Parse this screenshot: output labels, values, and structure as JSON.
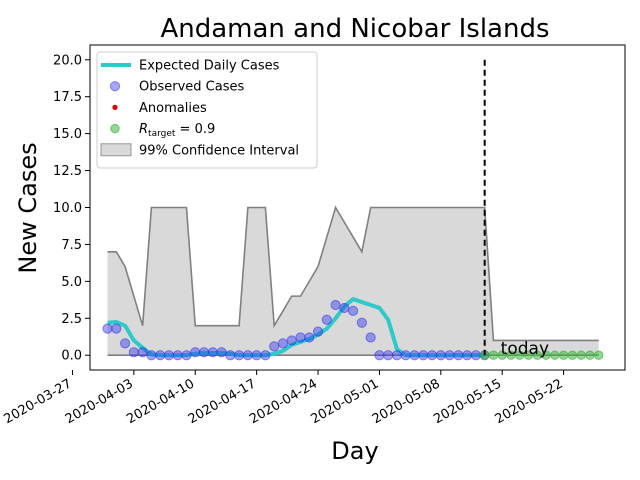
{
  "chart_data": {
    "type": "line",
    "title": "Andaman and Nicobar Islands",
    "xlabel": "Day",
    "ylabel": "New Cases",
    "x_start": "2020-03-31",
    "x_ticks": [
      "2020-03-27",
      "2020-04-03",
      "2020-04-10",
      "2020-04-17",
      "2020-04-24",
      "2020-05-01",
      "2020-05-08",
      "2020-05-15",
      "2020-05-22"
    ],
    "y_ticks": [
      "0.0",
      "2.5",
      "5.0",
      "7.5",
      "10.0",
      "12.5",
      "15.0",
      "17.5",
      "20.0"
    ],
    "xlim": [
      "2020-03-29",
      "2020-05-29"
    ],
    "ylim": [
      -1.0,
      21.0
    ],
    "legend_position": "upper left",
    "today_date": "2020-05-13",
    "today_label": "today",
    "legend": {
      "expected": "Expected Daily Cases",
      "observed": "Observed Cases",
      "anomalies": "Anomalies",
      "target": "R_target = 0.9",
      "ci": "99% Confidence Interval"
    },
    "colors": {
      "expected": "#2ec9c9",
      "observed": "#2d2df0",
      "anomalies": "#e00000",
      "target": "#3cb43c",
      "ci_fill": "#d9d9d9",
      "ci_edge": "#808080",
      "today_line": "#000000"
    },
    "series": [
      {
        "name": "Expected Daily Cases",
        "dates": [
          "2020-03-31",
          "2020-04-01",
          "2020-04-02",
          "2020-04-03",
          "2020-04-04",
          "2020-04-05",
          "2020-04-06",
          "2020-04-07",
          "2020-04-08",
          "2020-04-09",
          "2020-04-10",
          "2020-04-11",
          "2020-04-12",
          "2020-04-13",
          "2020-04-14",
          "2020-04-15",
          "2020-04-16",
          "2020-04-17",
          "2020-04-18",
          "2020-04-19",
          "2020-04-20",
          "2020-04-21",
          "2020-04-22",
          "2020-04-23",
          "2020-04-24",
          "2020-04-25",
          "2020-04-26",
          "2020-04-27",
          "2020-04-28",
          "2020-04-29",
          "2020-04-30",
          "2020-05-01",
          "2020-05-02",
          "2020-05-03",
          "2020-05-04",
          "2020-05-05",
          "2020-05-06",
          "2020-05-07",
          "2020-05-08",
          "2020-05-09",
          "2020-05-10",
          "2020-05-11",
          "2020-05-12",
          "2020-05-13"
        ],
        "values": [
          2.2,
          2.25,
          2.0,
          1.0,
          0.5,
          0.05,
          0.0,
          0.0,
          0.0,
          0.0,
          0.1,
          0.15,
          0.15,
          0.15,
          0.1,
          0.0,
          0.0,
          0.0,
          0.0,
          0.1,
          0.3,
          0.7,
          0.9,
          1.1,
          1.4,
          1.8,
          2.5,
          3.3,
          3.8,
          3.6,
          3.4,
          3.2,
          2.4,
          0.4,
          0.0,
          0.0,
          0.0,
          0.0,
          0.0,
          0.0,
          0.0,
          0.0,
          0.0,
          0.0
        ]
      },
      {
        "name": "Observed Cases",
        "dates": [
          "2020-03-31",
          "2020-04-01",
          "2020-04-02",
          "2020-04-03",
          "2020-04-04",
          "2020-04-05",
          "2020-04-06",
          "2020-04-07",
          "2020-04-08",
          "2020-04-09",
          "2020-04-10",
          "2020-04-11",
          "2020-04-12",
          "2020-04-13",
          "2020-04-14",
          "2020-04-15",
          "2020-04-16",
          "2020-04-17",
          "2020-04-18",
          "2020-04-19",
          "2020-04-20",
          "2020-04-21",
          "2020-04-22",
          "2020-04-23",
          "2020-04-24",
          "2020-04-25",
          "2020-04-26",
          "2020-04-27",
          "2020-04-28",
          "2020-04-29",
          "2020-04-30",
          "2020-05-01",
          "2020-05-02",
          "2020-05-03",
          "2020-05-04",
          "2020-05-05",
          "2020-05-06",
          "2020-05-07",
          "2020-05-08",
          "2020-05-09",
          "2020-05-10",
          "2020-05-11",
          "2020-05-12",
          "2020-05-13"
        ],
        "values": [
          1.8,
          1.8,
          0.8,
          0.2,
          0.2,
          0.0,
          0.0,
          0.0,
          0.0,
          0.0,
          0.2,
          0.2,
          0.2,
          0.2,
          0.0,
          0.0,
          0.0,
          0.0,
          0.0,
          0.6,
          0.8,
          1.0,
          1.2,
          1.2,
          1.6,
          2.4,
          3.4,
          3.2,
          3.0,
          2.2,
          1.2,
          0.0,
          0.0,
          0.0,
          0.0,
          0.0,
          0.0,
          0.0,
          0.0,
          0.0,
          0.0,
          0.0,
          0.0,
          0.0
        ]
      },
      {
        "name": "R_target = 0.9",
        "dates": [
          "2020-05-13",
          "2020-05-14",
          "2020-05-15",
          "2020-05-16",
          "2020-05-17",
          "2020-05-18",
          "2020-05-19",
          "2020-05-20",
          "2020-05-21",
          "2020-05-22",
          "2020-05-23",
          "2020-05-24",
          "2020-05-25",
          "2020-05-26"
        ],
        "values": [
          0,
          0,
          0,
          0,
          0,
          0,
          0,
          0,
          0,
          0,
          0,
          0,
          0,
          0
        ]
      }
    ],
    "ci_upper": {
      "dates": [
        "2020-03-31",
        "2020-04-01",
        "2020-04-02",
        "2020-04-04",
        "2020-04-05",
        "2020-04-06",
        "2020-04-08",
        "2020-04-09",
        "2020-04-10",
        "2020-04-11",
        "2020-04-12",
        "2020-04-13",
        "2020-04-15",
        "2020-04-16",
        "2020-04-17",
        "2020-04-18",
        "2020-04-19",
        "2020-04-20",
        "2020-04-21",
        "2020-04-22",
        "2020-04-23",
        "2020-04-24",
        "2020-04-25",
        "2020-04-26",
        "2020-04-27",
        "2020-04-28",
        "2020-04-29",
        "2020-04-30",
        "2020-05-01",
        "2020-05-02",
        "2020-05-03",
        "2020-05-04",
        "2020-05-05",
        "2020-05-06",
        "2020-05-07",
        "2020-05-08",
        "2020-05-09",
        "2020-05-10",
        "2020-05-11",
        "2020-05-12",
        "2020-05-13",
        "2020-05-14",
        "2020-05-26"
      ],
      "values": [
        7.0,
        7.0,
        6.0,
        2.0,
        10.0,
        10.0,
        10.0,
        10.0,
        2.0,
        2.0,
        2.0,
        2.0,
        2.0,
        10.0,
        10.0,
        10.0,
        2.0,
        3.0,
        4.0,
        4.0,
        5.0,
        6.0,
        8.0,
        10.0,
        9.0,
        8.0,
        7.0,
        10.0,
        10.0,
        10.0,
        10.0,
        10.0,
        10.0,
        10.0,
        10.0,
        10.0,
        10.0,
        10.0,
        10.0,
        10.0,
        10.0,
        1.0,
        1.0
      ]
    },
    "ci_lower": {
      "dates": [
        "2020-03-31",
        "2020-05-26"
      ],
      "values": [
        0,
        0
      ]
    }
  }
}
